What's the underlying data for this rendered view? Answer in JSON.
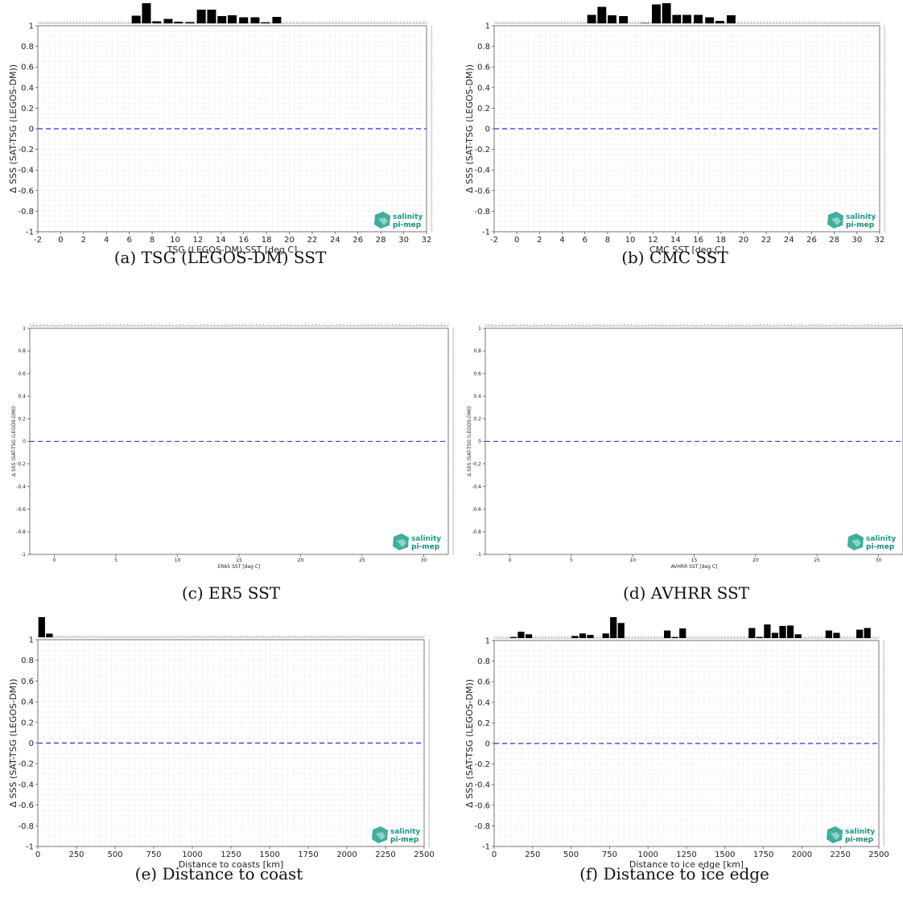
{
  "colors": {
    "zero_line": "#2b2bef",
    "bar": "#000000",
    "grid": "#dcdcdc",
    "logo": "#1a9a8a"
  },
  "logo": {
    "line1": "salinity",
    "line2": "pi-mep",
    "icon": "salinity-pi-mep-logo-icon"
  },
  "chart_data": [
    {
      "id": "a",
      "type": "scatter",
      "caption": "(a) TSG (LEGOS-DM) SST",
      "xlabel": "TSG (LEGOS-DM) SST [deg C]",
      "ylabel": "Δ SSS (SAT-TSG (LEGOS-DM))",
      "xlim": [
        -2,
        32
      ],
      "ylim": [
        -1,
        1
      ],
      "xticks": [
        -2,
        0,
        2,
        4,
        6,
        8,
        10,
        12,
        14,
        16,
        18,
        20,
        22,
        24,
        26,
        28,
        30,
        32
      ],
      "yticks": [
        -1,
        -0.8,
        -0.6,
        -0.4,
        -0.2,
        0,
        0.2,
        0.4,
        0.6,
        0.8,
        1
      ],
      "zero_line": 0,
      "grid": true,
      "histogram": {
        "x": [
          6.6,
          7.5,
          8.4,
          9.4,
          10.3,
          11.3,
          12.3,
          13.2,
          14.1,
          15.0,
          16.0,
          17.0,
          17.9,
          18.9,
          19.8
        ],
        "counts": [
          0.38,
          1.0,
          0.1,
          0.22,
          0.08,
          0.06,
          0.68,
          0.68,
          0.36,
          0.4,
          0.3,
          0.3,
          0.05,
          0.32,
          0
        ]
      }
    },
    {
      "id": "b",
      "type": "scatter",
      "caption": "(b) CMC SST",
      "xlabel": "CMC SST [deg C]",
      "ylabel": "Δ SSS (SAT-TSG (LEGOS-DM))",
      "xlim": [
        -2,
        32
      ],
      "ylim": [
        -1,
        1
      ],
      "xticks": [
        -2,
        0,
        2,
        4,
        6,
        8,
        10,
        12,
        14,
        16,
        18,
        20,
        22,
        24,
        26,
        28,
        30,
        32
      ],
      "yticks": [
        -1,
        -0.8,
        -0.6,
        -0.4,
        -0.2,
        0,
        0.2,
        0.4,
        0.6,
        0.8,
        1
      ],
      "zero_line": 0,
      "grid": true,
      "histogram": {
        "x": [
          6.6,
          7.5,
          8.4,
          9.4,
          10.3,
          11.3,
          12.3,
          13.2,
          14.1,
          15.0,
          16.0,
          17.0,
          17.9,
          18.9,
          19.8
        ],
        "counts": [
          0.42,
          0.82,
          0.4,
          0.36,
          0,
          0.02,
          0.94,
          1.0,
          0.42,
          0.42,
          0.42,
          0.3,
          0.12,
          0.4,
          0
        ]
      }
    },
    {
      "id": "c",
      "type": "scatter",
      "caption": "(c) ER5 SST",
      "xlabel": "ERA5 SST [deg C]",
      "ylabel": "Δ SSS (SAT-TSG (LEGOS-DM))",
      "xlim": [
        -2,
        32
      ],
      "ylim": [
        -1,
        1
      ],
      "xticks": [
        0,
        5,
        10,
        15,
        20,
        25,
        30
      ],
      "yticks": [
        -1,
        -0.8,
        -0.6,
        -0.4,
        -0.2,
        0,
        0.2,
        0.4,
        0.6,
        0.8,
        1
      ],
      "zero_line": 0,
      "grid": false,
      "histogram": {
        "x": [],
        "counts": []
      }
    },
    {
      "id": "d",
      "type": "scatter",
      "caption": "(d) AVHRR SST",
      "xlabel": "AVHRR SST [deg C]",
      "ylabel": "Δ SSS (SAT-TSG (LEGOS-DM))",
      "xlim": [
        -2,
        32
      ],
      "ylim": [
        -1,
        1
      ],
      "xticks": [
        0,
        5,
        10,
        15,
        20,
        25,
        30
      ],
      "yticks": [
        -1,
        -0.8,
        -0.6,
        -0.4,
        -0.2,
        0,
        0.2,
        0.4,
        0.6,
        0.8,
        1
      ],
      "zero_line": 0,
      "grid": false,
      "histogram": {
        "x": [],
        "counts": []
      }
    },
    {
      "id": "e",
      "type": "scatter",
      "caption": "(e) Distance to coast",
      "xlabel": "Distance to coasts [km]",
      "ylabel": "Δ SSS (SAT-TSG (LEGOS-DM))",
      "xlim": [
        0,
        2500
      ],
      "ylim": [
        -1,
        1
      ],
      "xticks": [
        0,
        250,
        500,
        750,
        1000,
        1250,
        1500,
        1750,
        2000,
        2250,
        2500
      ],
      "yticks": [
        -1,
        -0.8,
        -0.6,
        -0.4,
        -0.2,
        0,
        0.2,
        0.4,
        0.6,
        0.8,
        1
      ],
      "zero_line": 0,
      "grid": true,
      "histogram": {
        "x": [
          25,
          75
        ],
        "counts": [
          1.0,
          0.18
        ]
      }
    },
    {
      "id": "f",
      "type": "scatter",
      "caption": "(f) Distance to ice edge",
      "xlabel": "Distance to ice edge [km]",
      "ylabel": "Δ SSS (SAT-TSG (LEGOS-DM))",
      "xlim": [
        0,
        2500
      ],
      "ylim": [
        -1,
        1
      ],
      "xticks": [
        0,
        250,
        500,
        750,
        1000,
        1250,
        1500,
        1750,
        2000,
        2250,
        2500
      ],
      "yticks": [
        -1,
        -0.8,
        -0.6,
        -0.4,
        -0.2,
        0,
        0.2,
        0.4,
        0.6,
        0.8,
        1
      ],
      "zero_line": 0,
      "grid": true,
      "histogram": {
        "x": [
          125,
          175,
          225,
          525,
          575,
          625,
          725,
          775,
          825,
          1125,
          1175,
          1225,
          1675,
          1725,
          1775,
          1825,
          1875,
          1925,
          1975,
          2175,
          2225,
          2375,
          2425
        ],
        "counts": [
          0.05,
          0.3,
          0.18,
          0.1,
          0.22,
          0.15,
          0.22,
          1.0,
          0.72,
          0.36,
          0.05,
          0.46,
          0.48,
          0.05,
          0.65,
          0.25,
          0.58,
          0.6,
          0.18,
          0.36,
          0.25,
          0.4,
          0.48
        ]
      }
    }
  ]
}
